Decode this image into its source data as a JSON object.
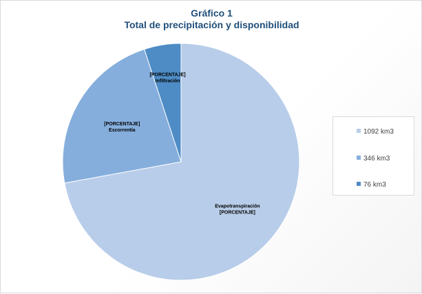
{
  "chart_data": {
    "type": "pie",
    "title": "Gráfico 1",
    "subtitle": "Total de precipitación y disponibilidad",
    "categories": [
      "1092 km3",
      "346 km3",
      "76 km3"
    ],
    "values": [
      1092,
      346,
      76
    ],
    "slice_labels": [
      {
        "line1": "Evapotranspiración",
        "line2": "[PORCENTAJE]"
      },
      {
        "line1": "[PORCENTAJE]",
        "line2": "Escorrentía"
      },
      {
        "line1": "[PORCENTAJE]",
        "line2": "Infiltración"
      }
    ],
    "colors": [
      "#b8cde9",
      "#85aedd",
      "#4e8cc5"
    ],
    "legend_position": "right"
  }
}
